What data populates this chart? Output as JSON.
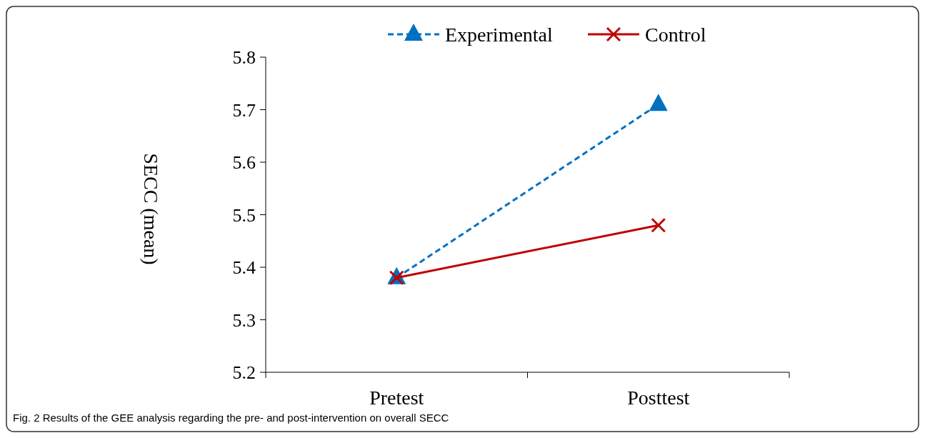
{
  "chart_data": {
    "type": "line",
    "ylabel": "SECC (mean)",
    "categories": [
      "Pretest",
      "Posttest"
    ],
    "series": [
      {
        "name": "Experimental",
        "color": "#0070c0",
        "values": [
          5.38,
          5.71
        ],
        "marker": "triangle",
        "line_style": "dashed"
      },
      {
        "name": "Control",
        "color": "#c00000",
        "values": [
          5.38,
          5.48
        ],
        "marker": "cross",
        "line_style": "solid"
      }
    ],
    "ylim": [
      5.2,
      5.8
    ],
    "yticks": [
      5.2,
      5.3,
      5.4,
      5.5,
      5.6,
      5.7,
      5.8
    ],
    "legend": "top",
    "grid": false,
    "annotations": [
      "Fig. 2 Results of the GEE analysis regarding the pre- and post-intervention on overall SECC"
    ]
  }
}
